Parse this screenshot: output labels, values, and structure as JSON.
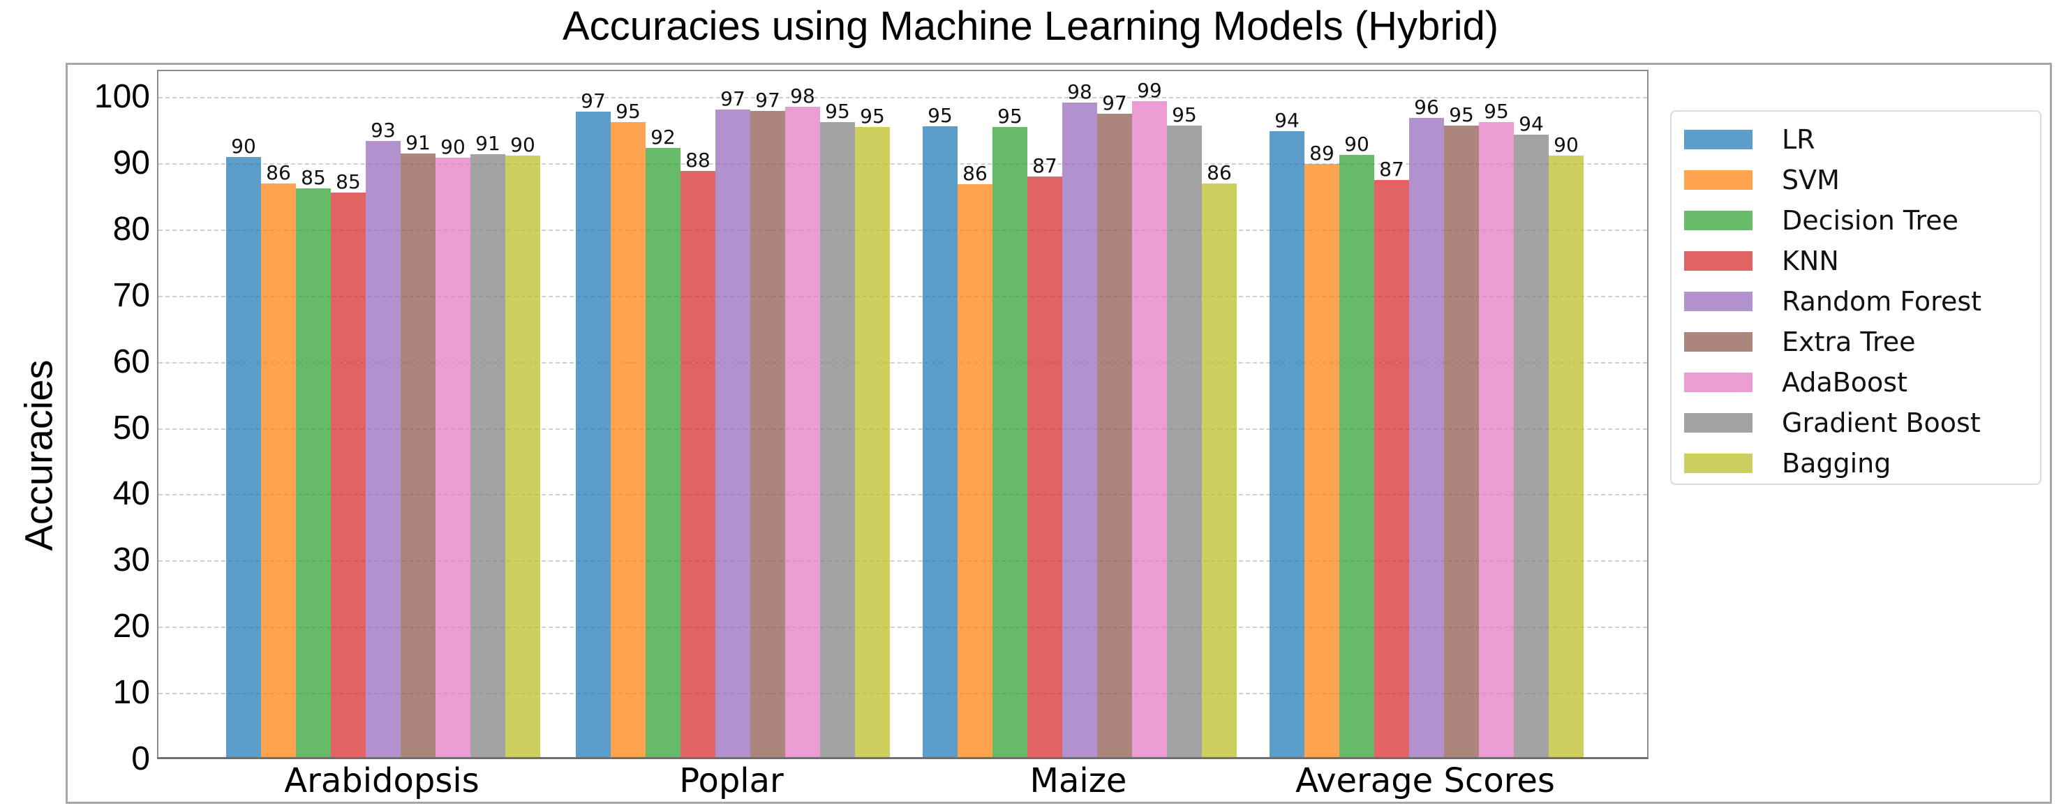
{
  "chart_data": {
    "type": "bar",
    "title": "Accuracies using Machine Learning Models (Hybrid)",
    "xlabel": "",
    "ylabel": "Accuracies",
    "ylim": [
      0,
      104
    ],
    "yticks": [
      0,
      10,
      20,
      30,
      40,
      50,
      60,
      70,
      80,
      90,
      100
    ],
    "grid": true,
    "legend_position": "outside right, upper",
    "categories": [
      "Arabidopsis",
      "Poplar",
      "Maize",
      "Average Scores"
    ],
    "series": [
      {
        "name": "LR",
        "color": "#1f77b4",
        "values": [
          90,
          97,
          95,
          94
        ]
      },
      {
        "name": "SVM",
        "color": "#ff7f0e",
        "values": [
          86,
          95,
          86,
          89
        ]
      },
      {
        "name": "Decision Tree",
        "color": "#2ca02c",
        "values": [
          85,
          92,
          95,
          90
        ]
      },
      {
        "name": "KNN",
        "color": "#d62728",
        "values": [
          85,
          88,
          87,
          87
        ]
      },
      {
        "name": "Random Forest",
        "color": "#9467bd",
        "values": [
          93,
          97,
          98,
          96
        ]
      },
      {
        "name": "Extra Tree",
        "color": "#8c564b",
        "values": [
          91,
          97,
          97,
          95
        ]
      },
      {
        "name": "AdaBoost",
        "color": "#e377c2",
        "values": [
          90,
          98,
          99,
          95
        ]
      },
      {
        "name": "Gradient Boost",
        "color": "#7f7f7f",
        "values": [
          91,
          95,
          95,
          94
        ]
      },
      {
        "name": "Bagging",
        "color": "#bcbd22",
        "values": [
          90,
          95,
          86,
          90
        ]
      }
    ],
    "bar_heights_estimated": [
      [
        90.6,
        97.5,
        95.3,
        94.5
      ],
      [
        86.6,
        95.9,
        86.5,
        89.6
      ],
      [
        85.9,
        92.0,
        95.2,
        90.9
      ],
      [
        85.3,
        88.5,
        87.7,
        87.1
      ],
      [
        93.0,
        97.8,
        98.8,
        96.5
      ],
      [
        91.2,
        97.6,
        97.2,
        95.4
      ],
      [
        90.5,
        98.2,
        99.1,
        95.9
      ],
      [
        91.0,
        95.9,
        95.4,
        94.0
      ],
      [
        90.8,
        95.2,
        86.6,
        90.8
      ]
    ]
  }
}
